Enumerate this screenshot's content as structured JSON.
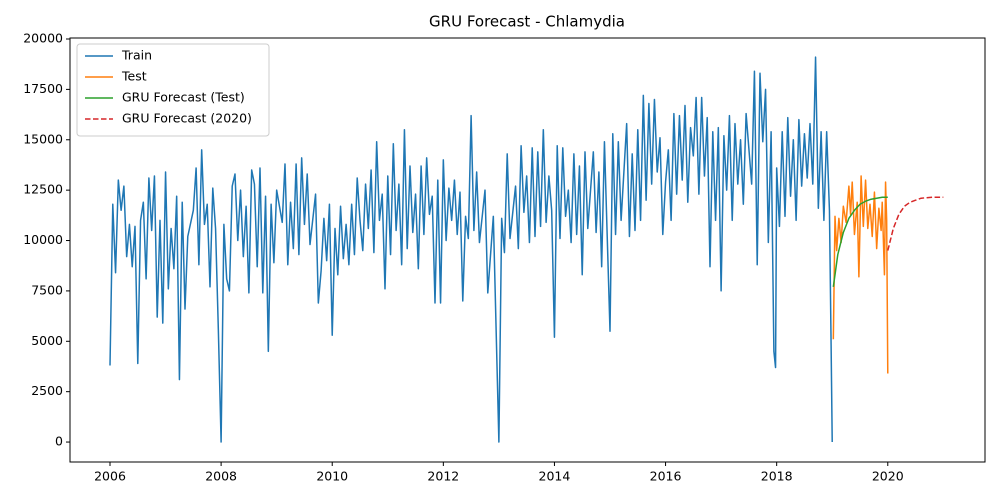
{
  "chart_data": {
    "type": "line",
    "title": "GRU Forecast - Chlamydia",
    "xlim": [
      2005.28,
      2021.75
    ],
    "xticks": [
      2006,
      2008,
      2010,
      2012,
      2014,
      2016,
      2018,
      2020
    ],
    "ylim": [
      -990,
      20050
    ],
    "yticks": [
      0,
      2500,
      5000,
      7500,
      10000,
      12500,
      15000,
      17500,
      20000
    ],
    "grid": false,
    "legend": "upper-left",
    "series": [
      {
        "name": "Train",
        "color": "#1f77b4",
        "linestyle": "solid",
        "x": [
          2006.0,
          2006.05,
          2006.1,
          2006.15,
          2006.2,
          2006.25,
          2006.3,
          2006.35,
          2006.4,
          2006.45,
          2006.5,
          2006.55,
          2006.6,
          2006.65,
          2006.7,
          2006.75,
          2006.8,
          2006.85,
          2006.9,
          2006.95,
          2007.0,
          2007.05,
          2007.1,
          2007.15,
          2007.2,
          2007.25,
          2007.3,
          2007.35,
          2007.4,
          2007.5,
          2007.55,
          2007.6,
          2007.65,
          2007.7,
          2007.75,
          2007.8,
          2007.85,
          2007.9,
          2007.95,
          2008.0,
          2008.05,
          2008.1,
          2008.15,
          2008.2,
          2008.25,
          2008.3,
          2008.35,
          2008.4,
          2008.45,
          2008.5,
          2008.55,
          2008.6,
          2008.65,
          2008.7,
          2008.75,
          2008.8,
          2008.85,
          2008.9,
          2008.95,
          2009.0,
          2009.1,
          2009.15,
          2009.2,
          2009.25,
          2009.3,
          2009.35,
          2009.4,
          2009.45,
          2009.5,
          2009.55,
          2009.6,
          2009.7,
          2009.75,
          2009.8,
          2009.85,
          2009.9,
          2009.95,
          2010.0,
          2010.05,
          2010.1,
          2010.15,
          2010.2,
          2010.25,
          2010.3,
          2010.35,
          2010.4,
          2010.45,
          2010.5,
          2010.55,
          2010.6,
          2010.65,
          2010.7,
          2010.75,
          2010.8,
          2010.85,
          2010.9,
          2010.95,
          2011.0,
          2011.05,
          2011.1,
          2011.15,
          2011.2,
          2011.25,
          2011.3,
          2011.35,
          2011.4,
          2011.45,
          2011.5,
          2011.55,
          2011.6,
          2011.65,
          2011.7,
          2011.75,
          2011.8,
          2011.85,
          2011.9,
          2011.95,
          2012.0,
          2012.05,
          2012.1,
          2012.15,
          2012.2,
          2012.25,
          2012.3,
          2012.35,
          2012.4,
          2012.45,
          2012.5,
          2012.55,
          2012.6,
          2012.65,
          2012.75,
          2012.8,
          2012.9,
          2013.0,
          2013.05,
          2013.1,
          2013.15,
          2013.2,
          2013.3,
          2013.35,
          2013.4,
          2013.45,
          2013.5,
          2013.55,
          2013.6,
          2013.65,
          2013.7,
          2013.75,
          2013.8,
          2013.85,
          2013.9,
          2013.95,
          2014.0,
          2014.05,
          2014.1,
          2014.15,
          2014.2,
          2014.25,
          2014.3,
          2014.35,
          2014.4,
          2014.45,
          2014.5,
          2014.55,
          2014.6,
          2014.7,
          2014.75,
          2014.8,
          2014.85,
          2014.9,
          2014.95,
          2015.0,
          2015.05,
          2015.1,
          2015.15,
          2015.2,
          2015.3,
          2015.35,
          2015.4,
          2015.45,
          2015.5,
          2015.55,
          2015.6,
          2015.65,
          2015.7,
          2015.75,
          2015.8,
          2015.85,
          2015.9,
          2015.95,
          2016.0,
          2016.05,
          2016.1,
          2016.15,
          2016.2,
          2016.25,
          2016.3,
          2016.35,
          2016.4,
          2016.45,
          2016.5,
          2016.55,
          2016.6,
          2016.65,
          2016.7,
          2016.75,
          2016.8,
          2016.85,
          2016.9,
          2016.95,
          2017.0,
          2017.05,
          2017.1,
          2017.15,
          2017.2,
          2017.25,
          2017.3,
          2017.35,
          2017.4,
          2017.45,
          2017.55,
          2017.6,
          2017.65,
          2017.7,
          2017.75,
          2017.8,
          2017.85,
          2017.9,
          2017.95,
          2017.98,
          2018.0,
          2018.05,
          2018.1,
          2018.15,
          2018.2,
          2018.25,
          2018.3,
          2018.35,
          2018.4,
          2018.45,
          2018.5,
          2018.55,
          2018.6,
          2018.65,
          2018.7,
          2018.75,
          2018.8,
          2018.85,
          2018.9,
          2018.95,
          2018.98,
          2019.0
        ],
        "values": [
          3800,
          11800,
          8400,
          13000,
          11500,
          12700,
          9200,
          10800,
          8700,
          10700,
          3900,
          11000,
          11900,
          8100,
          13100,
          10500,
          13200,
          6200,
          11000,
          5900,
          13400,
          7600,
          10600,
          8600,
          12200,
          3100,
          11900,
          6600,
          10200,
          11500,
          13600,
          8800,
          14500,
          10800,
          11800,
          7700,
          12600,
          10600,
          5600,
          0,
          10800,
          8100,
          7500,
          12700,
          13300,
          10000,
          12500,
          9200,
          11700,
          7400,
          13500,
          12800,
          8700,
          13600,
          7400,
          12200,
          4500,
          11800,
          8900,
          12500,
          10900,
          13800,
          8800,
          11900,
          9600,
          13800,
          9300,
          14100,
          10800,
          13300,
          9800,
          12300,
          6900,
          8500,
          11100,
          9000,
          11800,
          5300,
          10600,
          8300,
          11700,
          9100,
          10800,
          8800,
          11800,
          9300,
          13100,
          11000,
          9500,
          12800,
          10600,
          13500,
          9400,
          14900,
          11000,
          12300,
          7600,
          13200,
          9300,
          14800,
          10500,
          12800,
          8800,
          15500,
          9600,
          13700,
          10400,
          12300,
          8600,
          13700,
          10300,
          14100,
          11300,
          12200,
          6900,
          13000,
          6900,
          14000,
          10000,
          12600,
          11000,
          13000,
          10300,
          12400,
          7000,
          11200,
          10100,
          16200,
          10500,
          13400,
          9900,
          12500,
          7400,
          11200,
          0,
          11100,
          9400,
          14300,
          10100,
          12700,
          9600,
          14700,
          11400,
          13200,
          9900,
          14600,
          10200,
          14400,
          10700,
          15500,
          10900,
          13200,
          11500,
          5200,
          14700,
          10100,
          14600,
          11200,
          12500,
          9900,
          14300,
          10300,
          13700,
          8300,
          14400,
          10600,
          14400,
          10400,
          13400,
          8700,
          14900,
          10200,
          5500,
          15300,
          10300,
          14900,
          11000,
          15800,
          10200,
          14300,
          10500,
          15500,
          11000,
          17200,
          12000,
          16800,
          12800,
          17000,
          13400,
          15100,
          10300,
          12900,
          14500,
          11000,
          16300,
          12300,
          16200,
          13000,
          16700,
          11900,
          15600,
          14200,
          17100,
          12300,
          17100,
          13200,
          16100,
          8700,
          15400,
          11000,
          15600,
          7500,
          15200,
          12500,
          16200,
          11000,
          15800,
          12800,
          15000,
          11800,
          16300,
          12800,
          18400,
          8800,
          18300,
          14900,
          17500,
          9900,
          15400,
          4500,
          3700,
          13600,
          10700,
          15400,
          11200,
          16100,
          12200,
          15000,
          11000,
          16000,
          12700,
          15300,
          13100,
          15800,
          12800,
          19100,
          11600,
          15400,
          11000,
          15400,
          11500,
          4800,
          0
        ]
      },
      {
        "name": "Test",
        "color": "#ff7f0e",
        "linestyle": "solid",
        "x": [
          2019.02,
          2019.05,
          2019.08,
          2019.12,
          2019.16,
          2019.2,
          2019.25,
          2019.3,
          2019.33,
          2019.36,
          2019.4,
          2019.45,
          2019.48,
          2019.52,
          2019.56,
          2019.6,
          2019.64,
          2019.68,
          2019.72,
          2019.76,
          2019.8,
          2019.84,
          2019.88,
          2019.9,
          2019.94,
          2019.96,
          2019.98,
          2020.0
        ],
        "values": [
          5100,
          11200,
          9500,
          11100,
          9900,
          11700,
          10900,
          12700,
          11300,
          12900,
          10300,
          11900,
          8200,
          13200,
          10700,
          13000,
          10600,
          11800,
          10200,
          12400,
          9600,
          11600,
          10500,
          11900,
          8300,
          12900,
          11000,
          3400
        ]
      },
      {
        "name": "GRU Forecast (Test)",
        "color": "#2ca02c",
        "linestyle": "solid",
        "x": [
          2019.02,
          2019.1,
          2019.2,
          2019.3,
          2019.4,
          2019.5,
          2019.6,
          2019.7,
          2019.8,
          2019.9,
          2020.0
        ],
        "values": [
          7700,
          9300,
          10400,
          11100,
          11500,
          11800,
          11950,
          12050,
          12100,
          12150,
          12150
        ]
      },
      {
        "name": "GRU Forecast (2020)",
        "color": "#d62728",
        "linestyle": "dashed",
        "x": [
          2020.0,
          2020.1,
          2020.2,
          2020.3,
          2020.4,
          2020.5,
          2020.6,
          2020.8,
          2021.0
        ],
        "values": [
          9500,
          10600,
          11300,
          11700,
          11900,
          12000,
          12100,
          12150,
          12150
        ]
      }
    ]
  }
}
